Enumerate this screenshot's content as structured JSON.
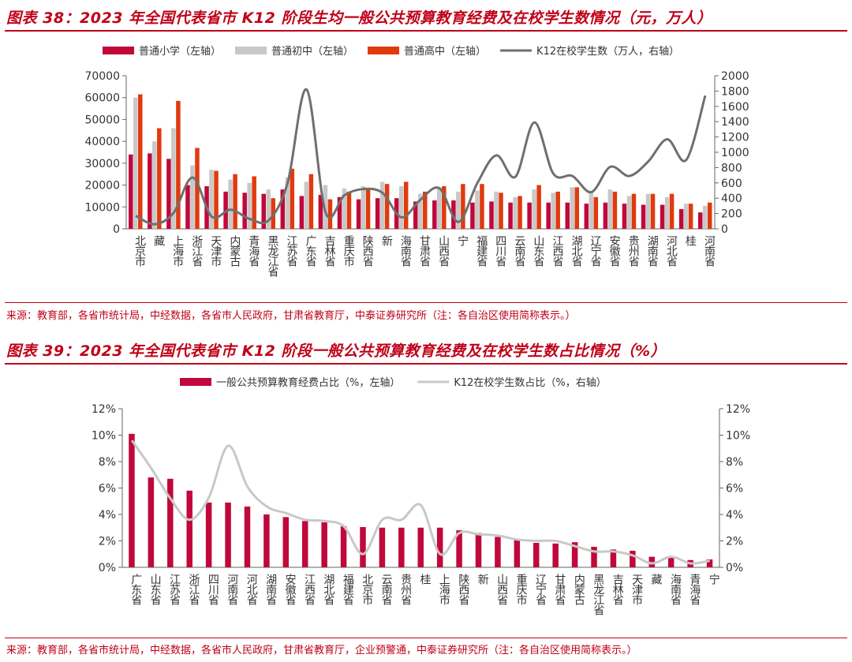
{
  "figure1": {
    "title": "图表 38：2023 年全国代表省市 K12 阶段生均一般公共预算教育经费及在校学生数情况（元，万人）",
    "source": "来源：教育部，各省市统计局，中经数据，各省市人民政府，甘肃省教育厅，中泰证券研究所（注：各自治区使用简称表示。）"
  },
  "figure2": {
    "title": "图表 39：2023 年全国代表省市 K12 阶段一般公共预算教育经费及在校学生数占比情况（%）",
    "source": "来源：教育部，各省市统计局，中经数据，各省市人民政府，甘肃省教育厅，企业预警通，中泰证券研究所（注：各自治区使用简称表示。）"
  },
  "chart_data": [
    {
      "type": "bar",
      "categories": [
        "北京市",
        "藏",
        "上海市",
        "浙江省",
        "天津市",
        "内蒙古",
        "青海省",
        "黑龙江省",
        "江苏省",
        "广东省",
        "吉林省",
        "重庆市",
        "陕西省",
        "新",
        "海南省",
        "甘肃省",
        "山西省",
        "宁",
        "福建省",
        "四川省",
        "云南省",
        "山东省",
        "江西省",
        "湖北省",
        "辽宁省",
        "安徽省",
        "贵州省",
        "湖南省",
        "河北省",
        "桂",
        "河南省"
      ],
      "series": [
        {
          "name": "普通小学（左轴）",
          "color": "#c0083a",
          "axis": "left",
          "values": [
            34000,
            34500,
            32000,
            20000,
            19500,
            17000,
            16500,
            16000,
            18000,
            15000,
            15500,
            14500,
            13500,
            14000,
            14000,
            12500,
            13000,
            13000,
            12000,
            12500,
            12000,
            12000,
            12000,
            12000,
            11500,
            12000,
            11500,
            11000,
            11000,
            9000,
            7500
          ]
        },
        {
          "name": "普通初中（左轴）",
          "color": "#c8c8c8",
          "axis": "left",
          "values": [
            60000,
            40000,
            46000,
            29000,
            27000,
            22500,
            21000,
            18000,
            23500,
            21500,
            20000,
            18500,
            19500,
            21500,
            19500,
            16000,
            18500,
            17000,
            17500,
            17000,
            14500,
            18000,
            16500,
            19000,
            17000,
            18000,
            15000,
            16000,
            14500,
            11500,
            10500
          ]
        },
        {
          "name": "普通高中（左轴）",
          "color": "#e03a0e",
          "axis": "left",
          "values": [
            61500,
            46000,
            58500,
            37000,
            26500,
            25000,
            24000,
            14000,
            27500,
            25000,
            13500,
            17000,
            18500,
            20500,
            21500,
            17000,
            19500,
            20500,
            20500,
            16500,
            15000,
            20000,
            17000,
            19000,
            14500,
            17000,
            16000,
            16000,
            16000,
            11500,
            12000
          ]
        },
        {
          "name": "K12在校学生数（万人，右轴）",
          "color": "#6f6f6f",
          "axis": "right",
          "kind": "line",
          "values": [
            170,
            60,
            210,
            670,
            160,
            250,
            130,
            110,
            600,
            1820,
            215,
            440,
            520,
            470,
            150,
            380,
            530,
            90,
            600,
            960,
            680,
            1390,
            720,
            690,
            480,
            810,
            690,
            880,
            1170,
            900,
            1740
          ]
        }
      ],
      "left_axis": {
        "min": 0,
        "max": 70000,
        "ticks": [
          "0",
          "10000",
          "20000",
          "30000",
          "40000",
          "50000",
          "60000",
          "70000"
        ]
      },
      "right_axis": {
        "min": 0,
        "max": 2000,
        "ticks": [
          "0",
          "200",
          "400",
          "600",
          "800",
          "1000",
          "1200",
          "1400",
          "1600",
          "1800",
          "2000"
        ]
      },
      "legend_position": "top"
    },
    {
      "type": "bar",
      "categories": [
        "广东省",
        "山东省",
        "江苏省",
        "浙江省",
        "四川省",
        "河南省",
        "河北省",
        "湖南省",
        "安徽省",
        "江西省",
        "湖北省",
        "福建省",
        "北京市",
        "云南省",
        "贵州省",
        "桂",
        "上海市",
        "陕西省",
        "新",
        "山西省",
        "重庆市",
        "辽宁省",
        "甘肃省",
        "内蒙古",
        "黑龙江省",
        "吉林省",
        "天津市",
        "藏",
        "海南省",
        "青海省",
        "宁"
      ],
      "series": [
        {
          "name": "一般公共预算教育经费占比（%，左轴）",
          "color": "#c0083a",
          "axis": "left",
          "values": [
            10.1,
            6.8,
            6.7,
            5.8,
            4.9,
            4.9,
            4.6,
            4.0,
            3.8,
            3.5,
            3.4,
            3.1,
            3.05,
            3.0,
            3.0,
            3.0,
            3.0,
            2.8,
            2.6,
            2.3,
            2.15,
            1.85,
            1.8,
            1.9,
            1.55,
            1.35,
            1.25,
            0.8,
            0.8,
            0.55,
            0.6
          ]
        },
        {
          "name": "K12在校学生数占比（%，右轴）",
          "color": "#c8c8c8",
          "axis": "right",
          "kind": "line",
          "values": [
            9.6,
            7.5,
            5.2,
            3.6,
            5.3,
            9.2,
            6.1,
            4.6,
            4.1,
            3.6,
            3.5,
            3.1,
            1.0,
            3.6,
            3.6,
            4.7,
            1.0,
            2.6,
            2.5,
            2.4,
            2.1,
            2.0,
            2.0,
            1.6,
            1.2,
            1.2,
            0.9,
            0.3,
            0.8,
            0.3,
            0.5
          ]
        }
      ],
      "left_axis": {
        "min": 0,
        "max": 12,
        "ticks": [
          "0%",
          "2%",
          "4%",
          "6%",
          "8%",
          "10%",
          "12%"
        ]
      },
      "right_axis": {
        "min": 0,
        "max": 12,
        "ticks": [
          "0%",
          "2%",
          "4%",
          "6%",
          "8%",
          "10%",
          "12%"
        ]
      },
      "legend_position": "top"
    }
  ]
}
